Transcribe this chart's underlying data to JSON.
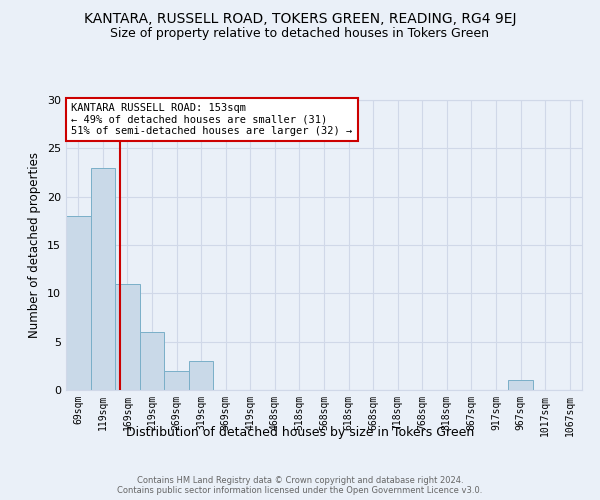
{
  "title": "KANTARA, RUSSELL ROAD, TOKERS GREEN, READING, RG4 9EJ",
  "subtitle": "Size of property relative to detached houses in Tokers Green",
  "xlabel": "Distribution of detached houses by size in Tokers Green",
  "ylabel": "Number of detached properties",
  "footnote": "Contains HM Land Registry data © Crown copyright and database right 2024.\nContains public sector information licensed under the Open Government Licence v3.0.",
  "bin_labels": [
    "69sqm",
    "119sqm",
    "169sqm",
    "219sqm",
    "269sqm",
    "319sqm",
    "369sqm",
    "419sqm",
    "468sqm",
    "518sqm",
    "568sqm",
    "618sqm",
    "668sqm",
    "718sqm",
    "768sqm",
    "818sqm",
    "867sqm",
    "917sqm",
    "967sqm",
    "1017sqm",
    "1067sqm"
  ],
  "bar_values": [
    18,
    23,
    11,
    6,
    2,
    3,
    0,
    0,
    0,
    0,
    0,
    0,
    0,
    0,
    0,
    0,
    0,
    0,
    1,
    0,
    0
  ],
  "bar_color": "#c9d9e8",
  "bar_edge_color": "#7aafc8",
  "vline_color": "#cc0000",
  "vline_x": 1.68,
  "annotation_box_color": "#ffffff",
  "annotation_box_edge": "#cc0000",
  "subject_label_line1": "KANTARA RUSSELL ROAD: 153sqm",
  "subject_label_line2": "← 49% of detached houses are smaller (31)",
  "subject_label_line3": "51% of semi-detached houses are larger (32) →",
  "ylim": [
    0,
    30
  ],
  "yticks": [
    0,
    5,
    10,
    15,
    20,
    25,
    30
  ],
  "grid_color": "#d0d8e8",
  "background_color": "#eaf0f8",
  "title_fontsize": 10,
  "subtitle_fontsize": 9,
  "annotation_fontsize": 7.5,
  "tick_fontsize": 7,
  "ylabel_fontsize": 8.5,
  "xlabel_fontsize": 9,
  "footnote_fontsize": 6
}
